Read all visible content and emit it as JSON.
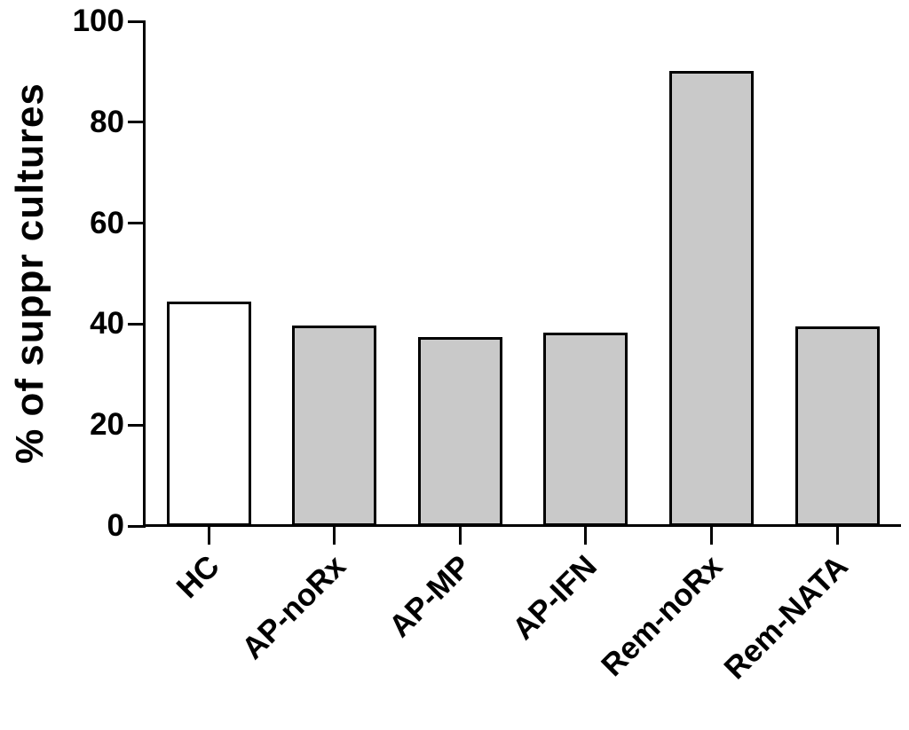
{
  "chart_data": {
    "type": "bar",
    "title": "",
    "xlabel": "",
    "ylabel": "% of suppr cultures",
    "ylim": [
      0,
      100
    ],
    "yticks": [
      0,
      20,
      40,
      60,
      80,
      100
    ],
    "grid": false,
    "legend": "none",
    "categories": [
      "HC",
      "AP-noRx",
      "AP-MP",
      "AP-IFN",
      "Rem-noRx",
      "Rem-NATA"
    ],
    "values": [
      44.5,
      39.8,
      37.5,
      38.3,
      90.2,
      39.5
    ],
    "bar_fills": [
      "#FFFFFF",
      "#C9C9C9",
      "#C9C9C9",
      "#C9C9C9",
      "#C9C9C9",
      "#C9C9C9"
    ],
    "bar_stroke": "#000000",
    "axis_color": "#000000",
    "text_color": "#000000",
    "background_color": "#FFFFFF"
  }
}
